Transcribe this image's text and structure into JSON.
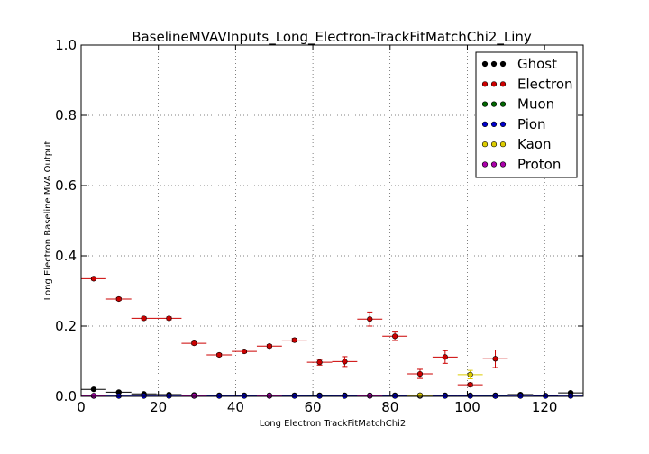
{
  "chart_data": {
    "type": "scatter",
    "title": "BaselineMVAVInputs_Long_Electron-TrackFitMatchChi2_Liny",
    "xlabel": "Long Electron TrackFitMatchChi2",
    "ylabel": "Long Electron Baseline MVA Output",
    "xlim": [
      0,
      130
    ],
    "ylim": [
      0,
      1.0
    ],
    "xticks": [
      "0",
      "20",
      "40",
      "60",
      "80",
      "100",
      "120"
    ],
    "yticks": [
      "0.0",
      "0.2",
      "0.4",
      "0.6",
      "0.8",
      "1.0"
    ],
    "grid": true,
    "legend_position": "top-right",
    "bin_half_width": 3.25,
    "series": [
      {
        "name": "Ghost",
        "color": "#000000",
        "points": [
          {
            "x": 3.25,
            "y": 0.02,
            "yerr": 0.002
          },
          {
            "x": 9.75,
            "y": 0.012,
            "yerr": 0.002
          },
          {
            "x": 16.25,
            "y": 0.007,
            "yerr": 0.001
          },
          {
            "x": 22.75,
            "y": 0.005,
            "yerr": 0.001
          },
          {
            "x": 29.25,
            "y": 0.004,
            "yerr": 0.001
          },
          {
            "x": 35.75,
            "y": 0.003,
            "yerr": 0.001
          },
          {
            "x": 42.25,
            "y": 0.003,
            "yerr": 0.001
          },
          {
            "x": 48.75,
            "y": 0.003,
            "yerr": 0.001
          },
          {
            "x": 55.25,
            "y": 0.003,
            "yerr": 0.001
          },
          {
            "x": 61.75,
            "y": 0.003,
            "yerr": 0.001
          },
          {
            "x": 68.25,
            "y": 0.003,
            "yerr": 0.001
          },
          {
            "x": 74.75,
            "y": 0.003,
            "yerr": 0.001
          },
          {
            "x": 81.25,
            "y": 0.003,
            "yerr": 0.001
          },
          {
            "x": 87.75,
            "y": 0.003,
            "yerr": 0.001
          },
          {
            "x": 94.25,
            "y": 0.003,
            "yerr": 0.001
          },
          {
            "x": 100.75,
            "y": 0.003,
            "yerr": 0.001
          },
          {
            "x": 107.25,
            "y": 0.003,
            "yerr": 0.001
          },
          {
            "x": 113.75,
            "y": 0.005,
            "yerr": 0.001
          },
          {
            "x": 120.25,
            "y": 0.002,
            "yerr": 0.001
          },
          {
            "x": 126.75,
            "y": 0.01,
            "yerr": 0.002
          }
        ]
      },
      {
        "name": "Electron",
        "color": "#cc0000",
        "points": [
          {
            "x": 3.25,
            "y": 0.335,
            "yerr": 0.004
          },
          {
            "x": 9.75,
            "y": 0.277,
            "yerr": 0.004
          },
          {
            "x": 16.25,
            "y": 0.222,
            "yerr": 0.004
          },
          {
            "x": 22.75,
            "y": 0.222,
            "yerr": 0.004
          },
          {
            "x": 29.25,
            "y": 0.151,
            "yerr": 0.004
          },
          {
            "x": 35.75,
            "y": 0.118,
            "yerr": 0.004
          },
          {
            "x": 42.25,
            "y": 0.128,
            "yerr": 0.004
          },
          {
            "x": 48.75,
            "y": 0.143,
            "yerr": 0.004
          },
          {
            "x": 55.25,
            "y": 0.16,
            "yerr": 0.005
          },
          {
            "x": 61.75,
            "y": 0.097,
            "yerr": 0.008
          },
          {
            "x": 68.25,
            "y": 0.099,
            "yerr": 0.014
          },
          {
            "x": 74.75,
            "y": 0.22,
            "yerr": 0.02
          },
          {
            "x": 81.25,
            "y": 0.171,
            "yerr": 0.012
          },
          {
            "x": 87.75,
            "y": 0.064,
            "yerr": 0.013
          },
          {
            "x": 94.25,
            "y": 0.112,
            "yerr": 0.018
          },
          {
            "x": 100.75,
            "y": 0.033,
            "yerr": 0.005
          },
          {
            "x": 107.25,
            "y": 0.107,
            "yerr": 0.025
          }
        ]
      },
      {
        "name": "Muon",
        "color": "#006600",
        "points": [
          {
            "x": 61.75,
            "y": 0.002,
            "yerr": 0.001
          },
          {
            "x": 107.25,
            "y": 0.001,
            "yerr": 0.001
          }
        ]
      },
      {
        "name": "Pion",
        "color": "#0000cc",
        "points": [
          {
            "x": 3.25,
            "y": 0.001,
            "yerr": 0.0005
          },
          {
            "x": 9.75,
            "y": 0.001,
            "yerr": 0.0005
          },
          {
            "x": 16.25,
            "y": 0.001,
            "yerr": 0.0005
          },
          {
            "x": 22.75,
            "y": 0.001,
            "yerr": 0.0005
          },
          {
            "x": 29.25,
            "y": 0.001,
            "yerr": 0.0005
          },
          {
            "x": 35.75,
            "y": 0.001,
            "yerr": 0.0005
          },
          {
            "x": 42.25,
            "y": 0.001,
            "yerr": 0.0005
          },
          {
            "x": 48.75,
            "y": 0.001,
            "yerr": 0.0005
          },
          {
            "x": 55.25,
            "y": 0.001,
            "yerr": 0.0005
          },
          {
            "x": 61.75,
            "y": 0.001,
            "yerr": 0.0005
          },
          {
            "x": 68.25,
            "y": 0.001,
            "yerr": 0.0005
          },
          {
            "x": 74.75,
            "y": 0.001,
            "yerr": 0.0005
          },
          {
            "x": 81.25,
            "y": 0.001,
            "yerr": 0.0005
          },
          {
            "x": 87.75,
            "y": 0.001,
            "yerr": 0.0005
          },
          {
            "x": 94.25,
            "y": 0.001,
            "yerr": 0.0005
          },
          {
            "x": 100.75,
            "y": 0.001,
            "yerr": 0.0005
          },
          {
            "x": 107.25,
            "y": 0.001,
            "yerr": 0.0005
          },
          {
            "x": 113.75,
            "y": 0.001,
            "yerr": 0.0005
          },
          {
            "x": 120.25,
            "y": 0.001,
            "yerr": 0.0005
          },
          {
            "x": 126.75,
            "y": 0.001,
            "yerr": 0.0005
          }
        ]
      },
      {
        "name": "Kaon",
        "color": "#ddcc00",
        "points": [
          {
            "x": 87.75,
            "y": 0.003,
            "yerr": 0.002
          },
          {
            "x": 100.75,
            "y": 0.062,
            "yerr": 0.012
          }
        ]
      },
      {
        "name": "Proton",
        "color": "#aa00aa",
        "points": [
          {
            "x": 3.25,
            "y": 0.002,
            "yerr": 0.001
          },
          {
            "x": 29.25,
            "y": 0.002,
            "yerr": 0.001
          },
          {
            "x": 48.75,
            "y": 0.002,
            "yerr": 0.001
          },
          {
            "x": 74.75,
            "y": 0.002,
            "yerr": 0.001
          }
        ]
      }
    ]
  }
}
